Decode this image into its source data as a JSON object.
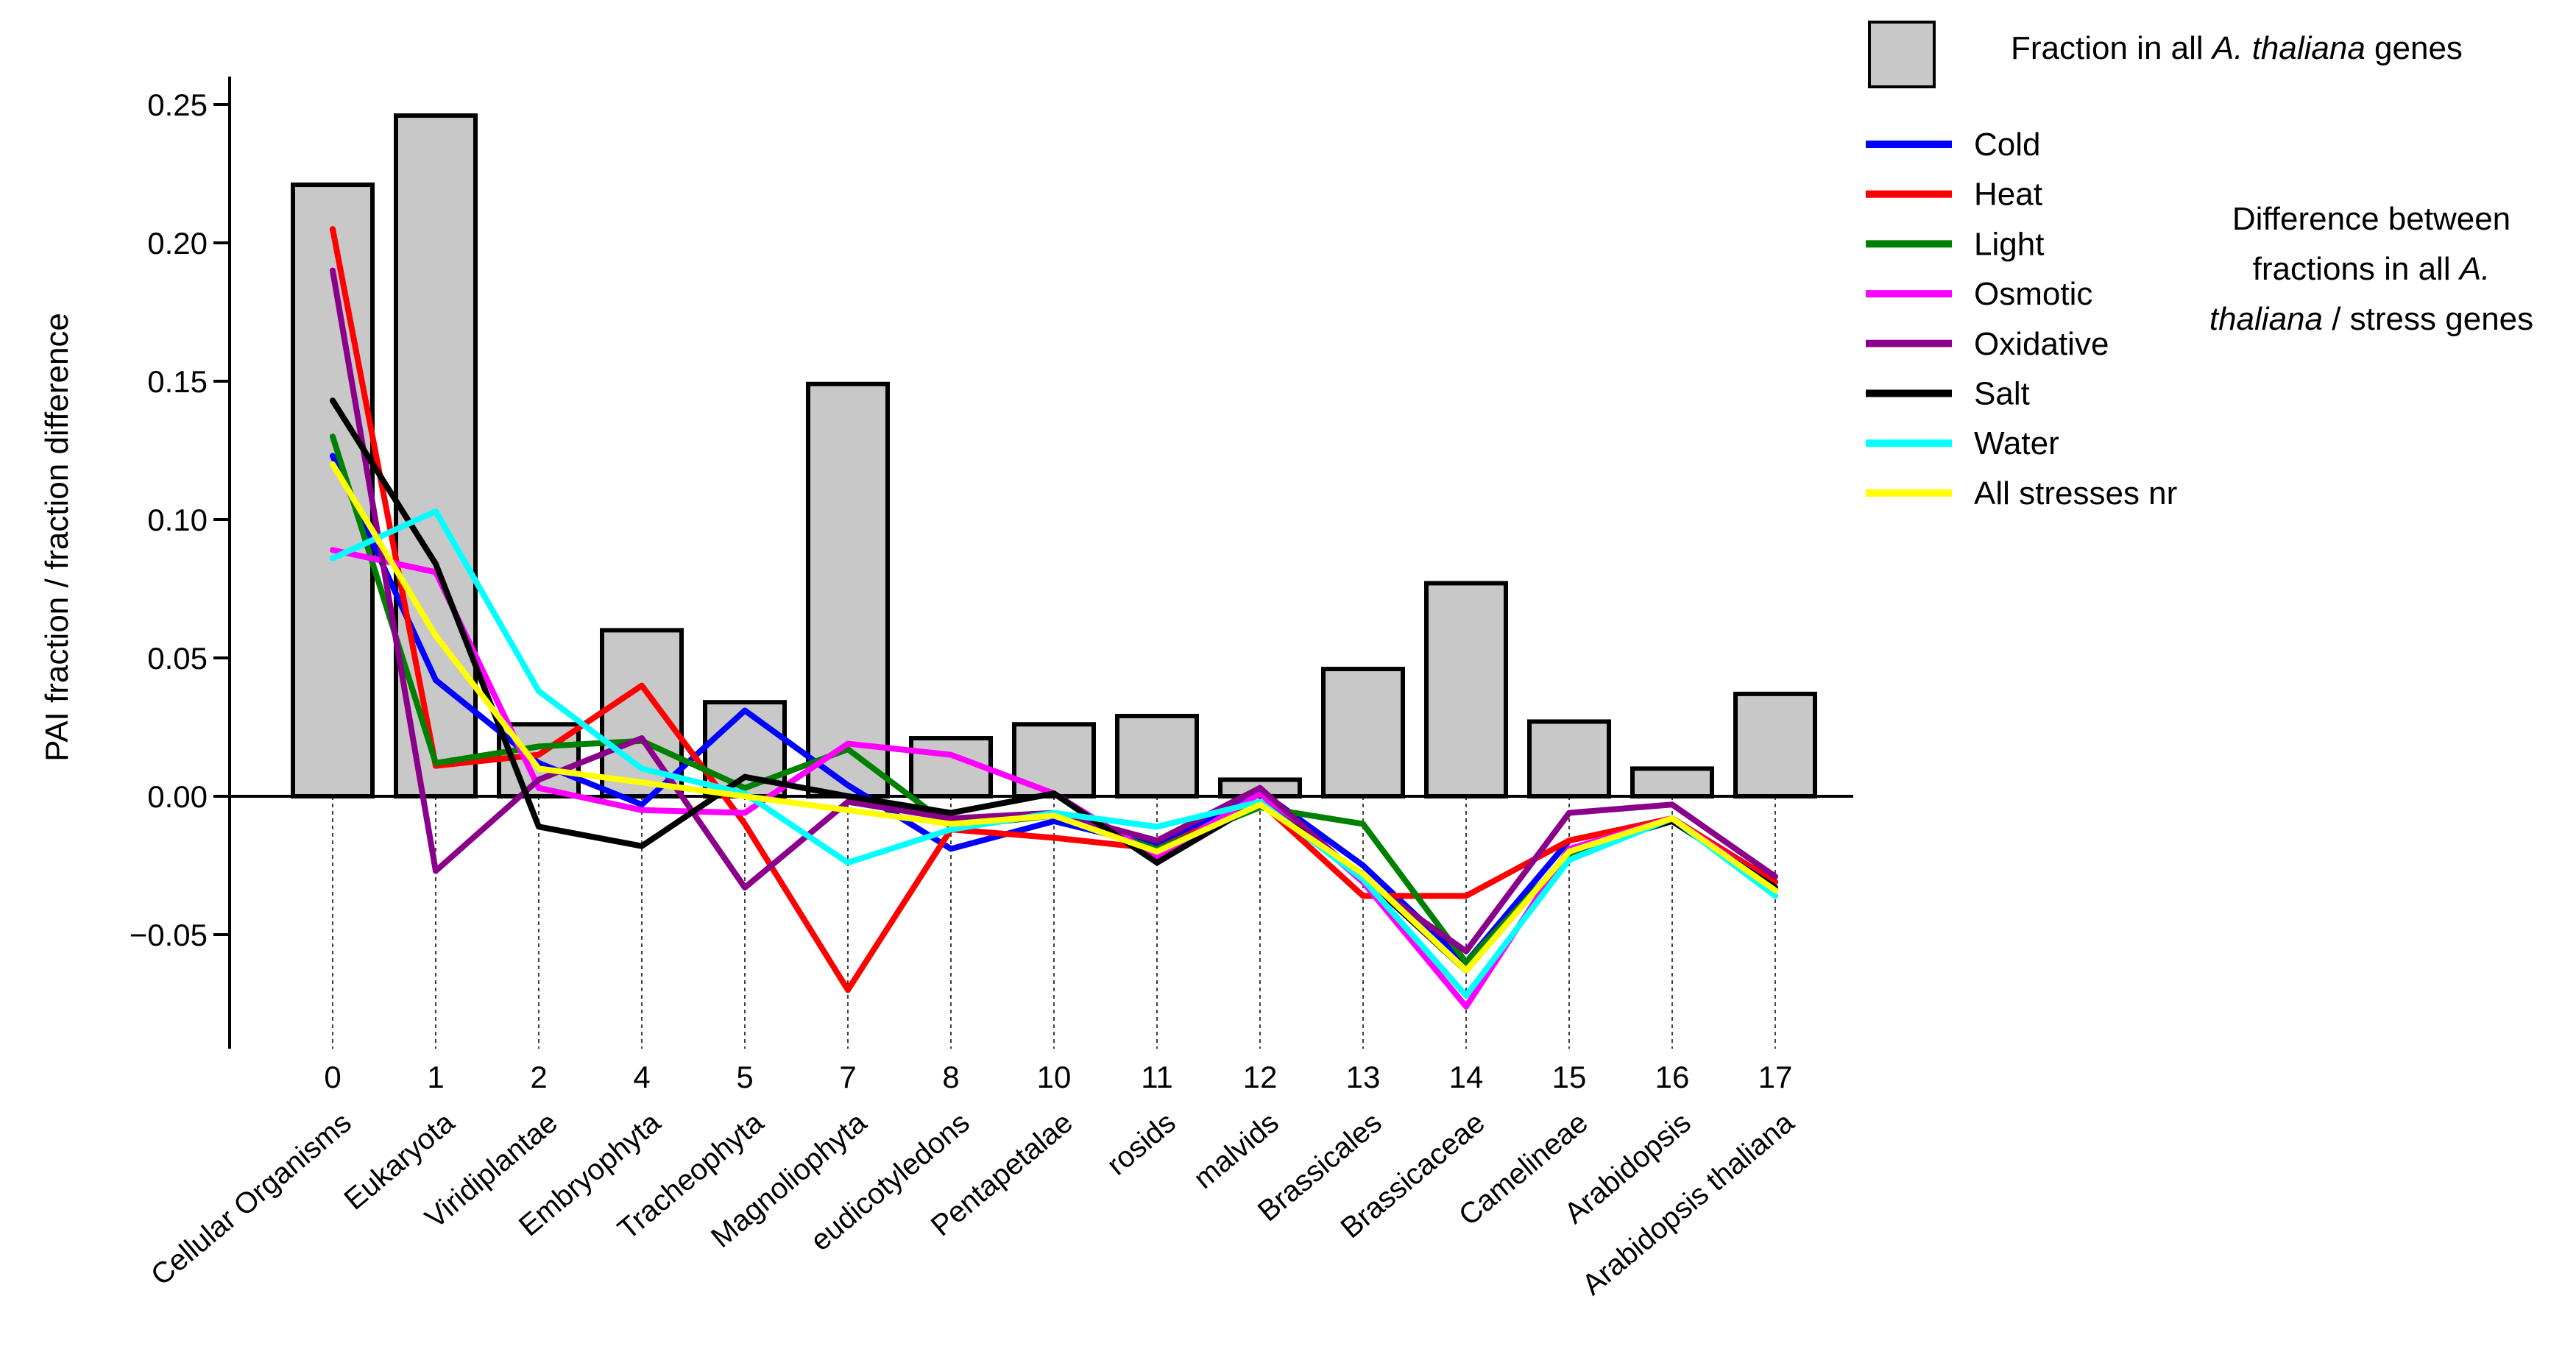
{
  "chart_data": {
    "type": "bar+line",
    "ylabel": "PAI fraction / fraction difference",
    "ylim": [
      -0.085,
      0.26
    ],
    "yticks": [
      -0.05,
      0.0,
      0.05,
      0.1,
      0.15,
      0.2,
      0.25
    ],
    "ytick_labels": [
      "−0.05",
      "0.00",
      "0.05",
      "0.10",
      "0.15",
      "0.20",
      "0.25"
    ],
    "categories": [
      {
        "id": "0",
        "name": "Cellular Organisms"
      },
      {
        "id": "1",
        "name": "Eukaryota"
      },
      {
        "id": "2",
        "name": "Viridiplantae"
      },
      {
        "id": "4",
        "name": "Embryophyta"
      },
      {
        "id": "5",
        "name": "Tracheophyta"
      },
      {
        "id": "7",
        "name": "Magnoliophyta"
      },
      {
        "id": "8",
        "name": "eudicotyledons"
      },
      {
        "id": "10",
        "name": "Pentapetalae"
      },
      {
        "id": "11",
        "name": "rosids"
      },
      {
        "id": "12",
        "name": "malvids"
      },
      {
        "id": "13",
        "name": "Brassicales"
      },
      {
        "id": "14",
        "name": "Brassicaceae"
      },
      {
        "id": "15",
        "name": "Camelineae"
      },
      {
        "id": "16",
        "name": "Arabidopsis"
      },
      {
        "id": "17",
        "name": "Arabidopsis thaliana"
      }
    ],
    "bars": {
      "name": "Fraction in all A. thaliana genes",
      "color": "#c8c8c8",
      "values": [
        0.221,
        0.246,
        0.026,
        0.06,
        0.034,
        0.149,
        0.021,
        0.026,
        0.029,
        0.006,
        0.046,
        0.077,
        0.027,
        0.01,
        0.037
      ]
    },
    "series": [
      {
        "name": "Cold",
        "color": "#0000ff",
        "values": [
          0.123,
          0.042,
          0.012,
          -0.003,
          0.031,
          0.004,
          -0.019,
          -0.009,
          -0.018,
          0.002,
          -0.025,
          -0.06,
          -0.016,
          -0.008,
          -0.031
        ]
      },
      {
        "name": "Heat",
        "color": "#ff0000",
        "values": [
          0.205,
          0.011,
          0.015,
          0.04,
          -0.01,
          -0.07,
          -0.012,
          -0.015,
          -0.019,
          -0.002,
          -0.036,
          -0.036,
          -0.016,
          -0.008,
          -0.031
        ]
      },
      {
        "name": "Light",
        "color": "#008000",
        "values": [
          0.13,
          0.012,
          0.018,
          0.02,
          0.003,
          0.017,
          -0.011,
          -0.007,
          -0.019,
          -0.004,
          -0.01,
          -0.06,
          -0.021,
          -0.008,
          -0.033
        ]
      },
      {
        "name": "Osmotic",
        "color": "#ff00ff",
        "values": [
          0.089,
          0.081,
          0.003,
          -0.005,
          -0.006,
          0.019,
          0.015,
          0.001,
          -0.022,
          0.001,
          -0.031,
          -0.076,
          -0.019,
          -0.008,
          -0.033
        ]
      },
      {
        "name": "Oxidative",
        "color": "#8b008b",
        "values": [
          0.19,
          -0.027,
          0.006,
          0.021,
          -0.033,
          -0.002,
          -0.008,
          -0.006,
          -0.016,
          0.003,
          -0.03,
          -0.056,
          -0.006,
          -0.003,
          -0.029
        ]
      },
      {
        "name": "Salt",
        "color": "#000000",
        "values": [
          0.143,
          0.084,
          -0.011,
          -0.018,
          0.007,
          0.0,
          -0.006,
          0.001,
          -0.024,
          -0.002,
          -0.029,
          -0.063,
          -0.02,
          -0.009,
          -0.033
        ]
      },
      {
        "name": "Water",
        "color": "#00ffff",
        "values": [
          0.086,
          0.103,
          0.038,
          0.01,
          0.001,
          -0.024,
          -0.012,
          -0.006,
          -0.011,
          -0.002,
          -0.03,
          -0.072,
          -0.023,
          -0.008,
          -0.036
        ]
      },
      {
        "name": "All stresses nr",
        "color": "#ffff00",
        "values": [
          0.12,
          0.058,
          0.01,
          0.005,
          0.0,
          -0.005,
          -0.01,
          -0.007,
          -0.02,
          -0.003,
          -0.028,
          -0.063,
          -0.02,
          -0.008,
          -0.034
        ]
      }
    ],
    "legend": {
      "bar_label_prefix": "Fraction in all ",
      "bar_label_italic": "A. thaliana",
      "bar_label_suffix": " genes",
      "note_line1": "Difference between",
      "note_line2a": "fractions in all ",
      "note_line2b": "A.",
      "note_line3a": "thaliana",
      "note_line3b": " / stress genes"
    }
  }
}
